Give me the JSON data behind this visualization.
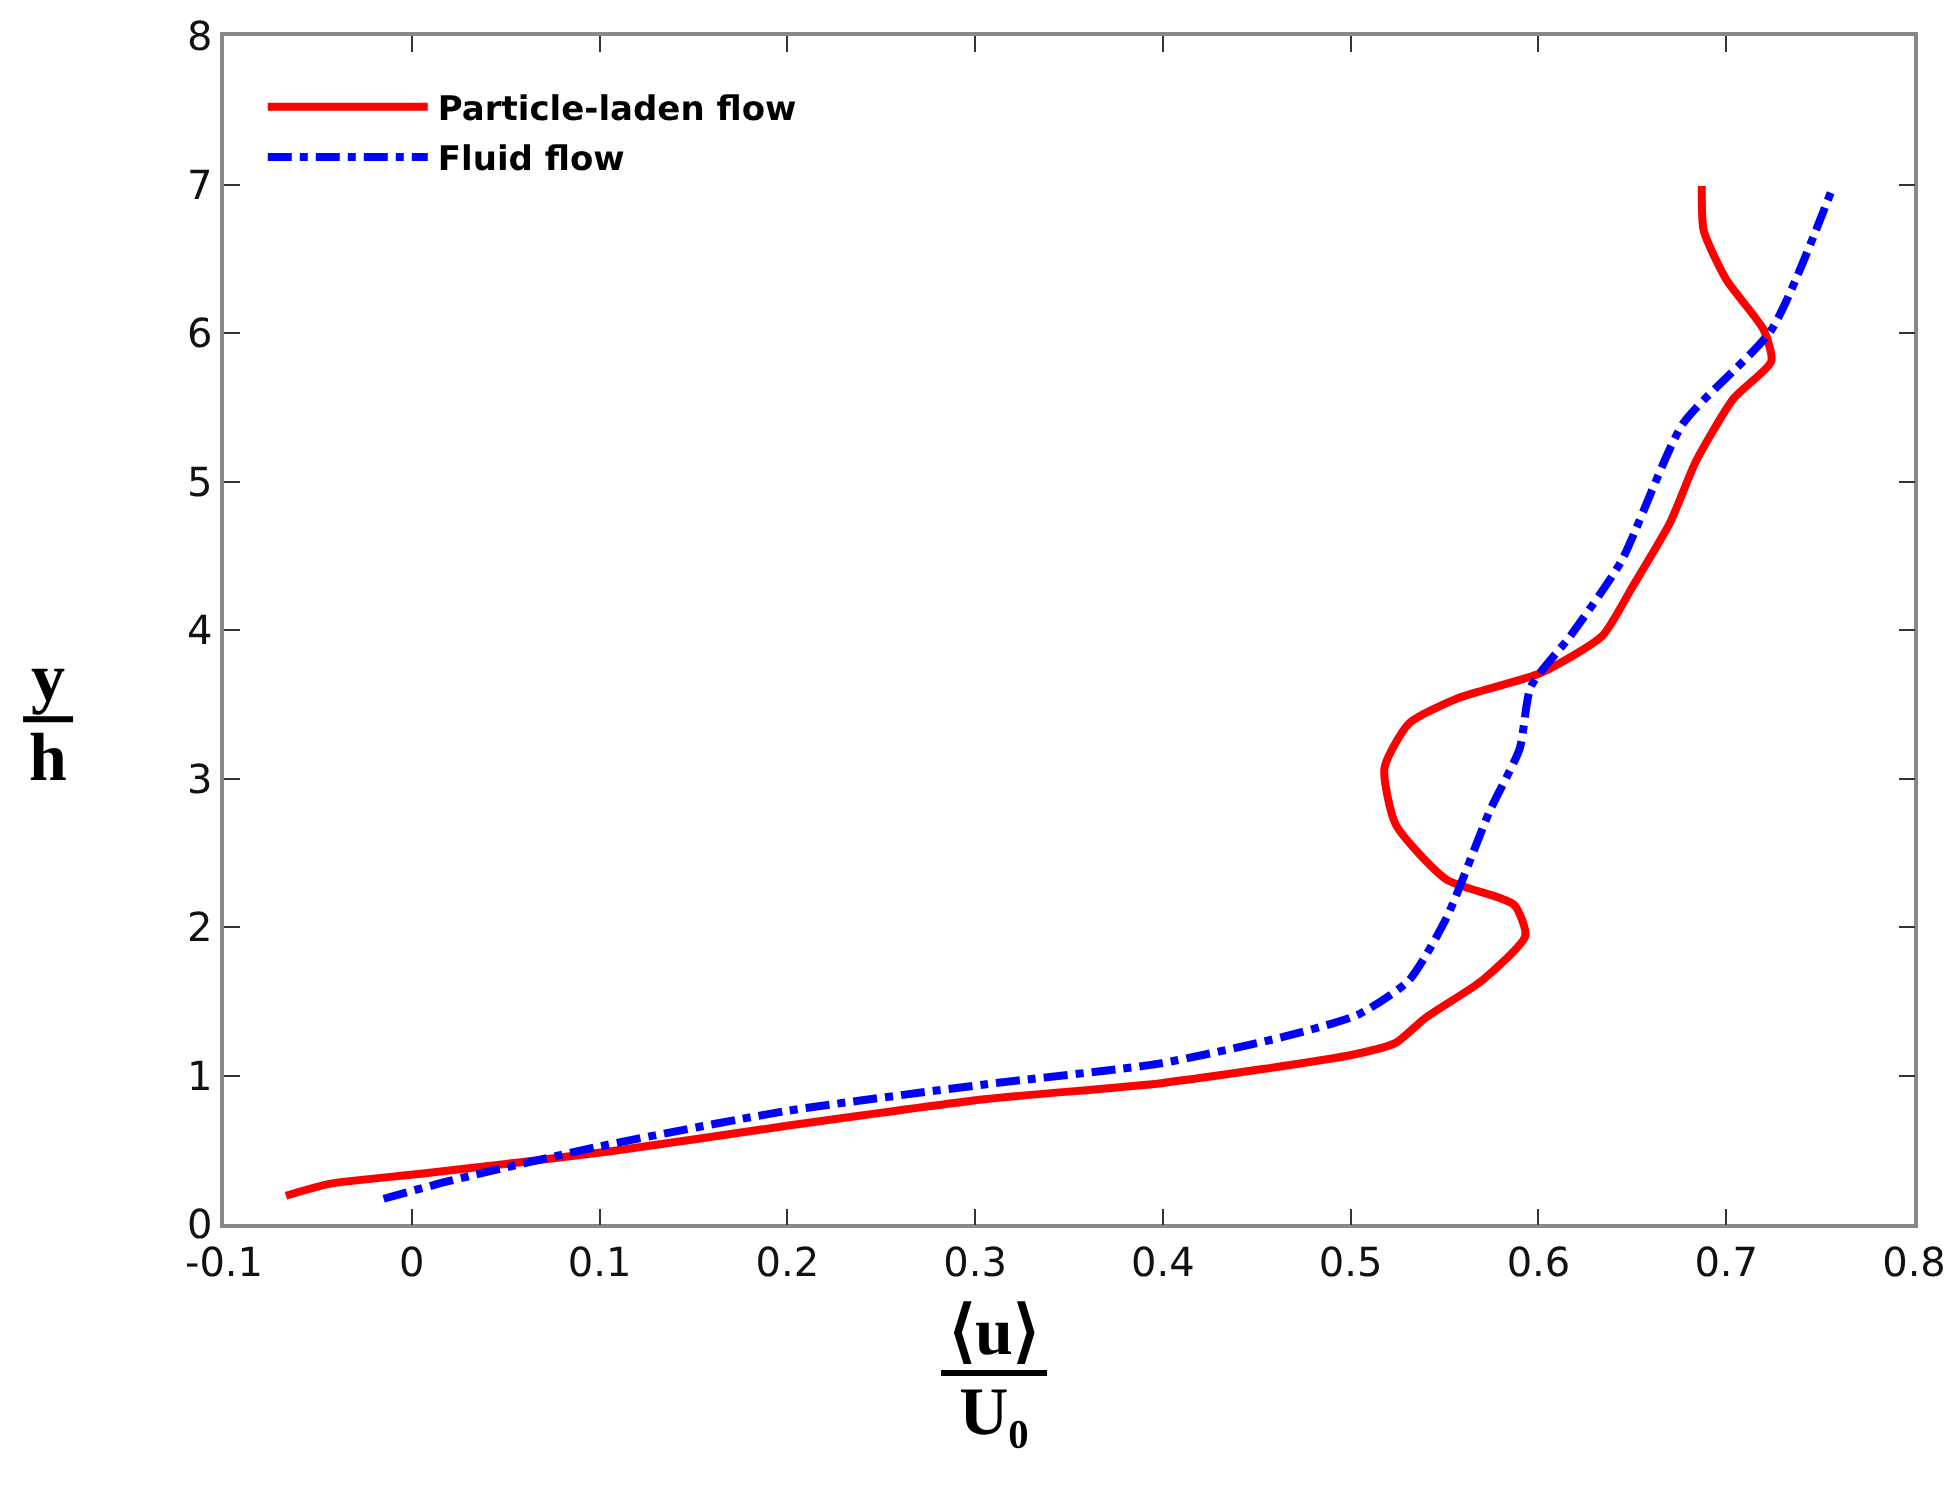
{
  "chart_data": {
    "type": "line",
    "xlabel": "⟨u⟩\nU₀",
    "ylabel": "y\nh",
    "grid": false,
    "legend": "top left",
    "marker": "none",
    "xlim": [
      -0.1,
      0.8
    ],
    "xticks": [
      -0.1,
      0,
      0.1,
      0.2,
      0.3,
      0.4,
      0.5,
      0.6,
      0.7,
      0.8
    ],
    "ylim": [
      0,
      8
    ],
    "yticks": [
      0,
      1,
      2,
      3,
      4,
      5,
      6,
      7,
      8
    ],
    "series": [
      {
        "name": "Particle-laden flow",
        "color": "#ff0000",
        "line_style": "solid",
        "x": [
          -0.067,
          -0.044,
          0.006,
          0.106,
          0.199,
          0.305,
          0.4,
          0.501,
          0.524,
          0.54,
          0.57,
          0.593,
          0.587,
          0.551,
          0.524,
          0.518,
          0.531,
          0.557,
          0.601,
          0.634,
          0.65,
          0.67,
          0.684,
          0.704,
          0.724,
          0.72,
          0.7,
          0.688,
          0.687
        ],
        "values": [
          0.19,
          0.27,
          0.34,
          0.49,
          0.66,
          0.84,
          0.95,
          1.14,
          1.22,
          1.39,
          1.64,
          1.94,
          2.15,
          2.32,
          2.69,
          3.07,
          3.37,
          3.54,
          3.71,
          3.96,
          4.29,
          4.72,
          5.14,
          5.56,
          5.81,
          6.02,
          6.36,
          6.69,
          6.99
        ]
      },
      {
        "name": "Fluid flow",
        "color": "#0000ff",
        "line_style": "dashdot",
        "x": [
          -0.015,
          0.02,
          0.099,
          0.199,
          0.305,
          0.398,
          0.464,
          0.504,
          0.531,
          0.551,
          0.574,
          0.59,
          0.596,
          0.617,
          0.644,
          0.677,
          0.724,
          0.757
        ],
        "values": [
          0.17,
          0.29,
          0.52,
          0.76,
          0.94,
          1.08,
          1.26,
          1.41,
          1.64,
          2.06,
          2.78,
          3.2,
          3.62,
          3.96,
          4.46,
          5.39,
          6.02,
          6.99
        ]
      }
    ]
  }
}
